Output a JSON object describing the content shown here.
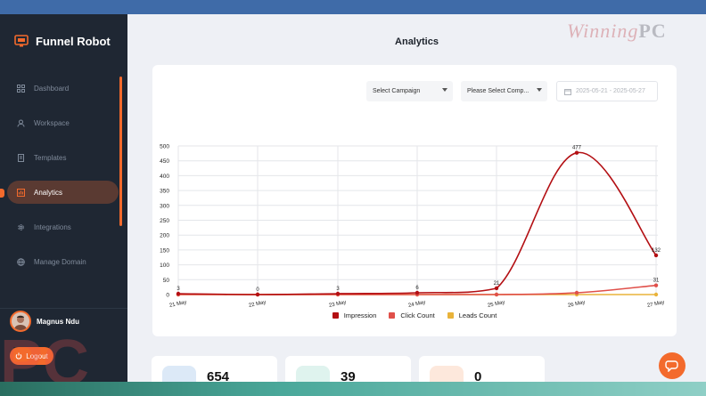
{
  "app": {
    "brand": "Funnel Robot"
  },
  "sidebar": {
    "items": [
      {
        "label": "Dashboard",
        "icon": "grid-icon",
        "active": false
      },
      {
        "label": "Workspace",
        "icon": "users-icon",
        "active": false
      },
      {
        "label": "Templates",
        "icon": "document-icon",
        "active": false
      },
      {
        "label": "Analytics",
        "icon": "analytics-icon",
        "active": true
      },
      {
        "label": "Integrations",
        "icon": "gear-icon",
        "active": false
      },
      {
        "label": "Manage Domain",
        "icon": "globe-icon",
        "active": false
      }
    ],
    "user_name": "Magnus Ndu",
    "logout_label": "Logout"
  },
  "page": {
    "title": "Analytics"
  },
  "filters": {
    "campaign_select": "Select Campaign",
    "company_select": "Please Select Comp...",
    "date_range": "2025-05-21 - 2025-05-27"
  },
  "colors": {
    "accent": "#f36a2c",
    "impression": "#b30f13",
    "click": "#e0504a",
    "leads": "#e9b33a",
    "sidebar_bg": "#1f2733"
  },
  "chart_data": {
    "type": "line",
    "categories": [
      "21 May",
      "22 May",
      "23 May",
      "24 May",
      "25 May",
      "26 May",
      "27 May"
    ],
    "series": [
      {
        "name": "Impression",
        "values": [
          3,
          0,
          3,
          6,
          21,
          477,
          132
        ],
        "labels": [
          "3",
          "0",
          "3",
          "6",
          "21",
          "477",
          "132"
        ]
      },
      {
        "name": "Click Count",
        "values": [
          0,
          0,
          0,
          0,
          0,
          6,
          31
        ],
        "labels": [
          "",
          "",
          "",
          "",
          "",
          "",
          "31"
        ]
      },
      {
        "name": "Leads Count",
        "values": [
          0,
          0,
          0,
          0,
          0,
          0,
          0
        ],
        "labels": [
          "",
          "",
          "",
          "",
          "",
          "",
          ""
        ]
      }
    ],
    "ylim": [
      0,
      500
    ],
    "yticks": [
      "500",
      "450",
      "400",
      "350",
      "300",
      "250",
      "200",
      "150",
      "100",
      "50",
      "0"
    ],
    "grid": true,
    "legend": "bottom"
  },
  "stats": [
    {
      "value": "654",
      "icon": "eye-icon",
      "color": "#dce9f7"
    },
    {
      "value": "39",
      "icon": "click-icon",
      "color": "#dff3ee"
    },
    {
      "value": "0",
      "icon": "leads-icon",
      "color": "#fde8dc"
    }
  ],
  "watermark": {
    "text": "Winning",
    "pc": "PC",
    "corner": "PC"
  }
}
